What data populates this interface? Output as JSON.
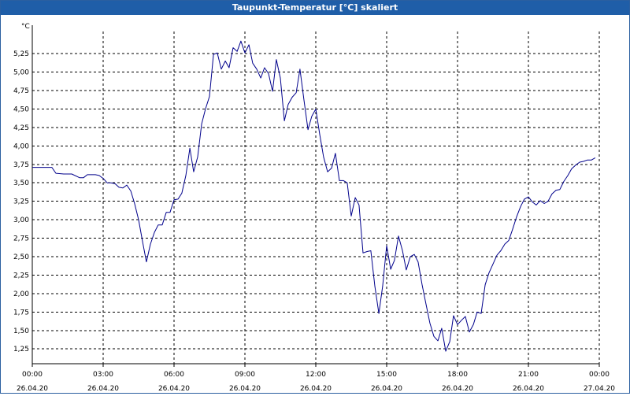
{
  "window": {
    "title": "Taupunkt-Temperatur [°C] skaliert"
  },
  "colors": {
    "titlebar": "#1f5ea8",
    "series": "#00008b",
    "grid": "#000000"
  },
  "chart_data": {
    "type": "line",
    "title": "Taupunkt-Temperatur [°C] skaliert",
    "ylabel": "°C",
    "xlabel": "",
    "grid": true,
    "legend": "none",
    "xlim_hours": [
      0,
      24
    ],
    "ylim": [
      1.05,
      5.55
    ],
    "yticks": [
      1.25,
      1.5,
      1.75,
      2.0,
      2.25,
      2.5,
      2.75,
      3.0,
      3.25,
      3.5,
      3.75,
      4.0,
      4.25,
      4.5,
      4.75,
      5.0,
      5.25
    ],
    "ytick_labels": [
      "1,25",
      "1,50",
      "1,75",
      "2,00",
      "2,25",
      "2,50",
      "2,75",
      "3,00",
      "3,25",
      "3,50",
      "3,75",
      "4,00",
      "4,25",
      "4,50",
      "4,75",
      "5,00",
      "5,25"
    ],
    "xticks": [
      {
        "hour": 0,
        "time": "00:00",
        "date": "26.04.20"
      },
      {
        "hour": 3,
        "time": "03:00",
        "date": "26.04.20"
      },
      {
        "hour": 6,
        "time": "06:00",
        "date": "26.04.20"
      },
      {
        "hour": 9,
        "time": "09:00",
        "date": "26.04.20"
      },
      {
        "hour": 12,
        "time": "12:00",
        "date": "26.04.20"
      },
      {
        "hour": 15,
        "time": "15:00",
        "date": "26.04.20"
      },
      {
        "hour": 18,
        "time": "18:00",
        "date": "26.04.20"
      },
      {
        "hour": 21,
        "time": "21:00",
        "date": "26.04.20"
      },
      {
        "hour": 24,
        "time": "00:00",
        "date": "27.04.20"
      }
    ],
    "series": [
      {
        "color": "#00008b",
        "points": [
          [
            0.0,
            3.71
          ],
          [
            0.5,
            3.71
          ],
          [
            0.83,
            3.71
          ],
          [
            1.0,
            3.63
          ],
          [
            1.33,
            3.62
          ],
          [
            1.67,
            3.62
          ],
          [
            2.0,
            3.57
          ],
          [
            2.17,
            3.57
          ],
          [
            2.33,
            3.61
          ],
          [
            2.67,
            3.61
          ],
          [
            2.83,
            3.6
          ],
          [
            3.0,
            3.56
          ],
          [
            3.17,
            3.5
          ],
          [
            3.33,
            3.5
          ],
          [
            3.5,
            3.49
          ],
          [
            3.67,
            3.44
          ],
          [
            3.83,
            3.43
          ],
          [
            4.0,
            3.47
          ],
          [
            4.17,
            3.39
          ],
          [
            4.33,
            3.22
          ],
          [
            4.5,
            3.0
          ],
          [
            4.67,
            2.7
          ],
          [
            4.83,
            2.43
          ],
          [
            5.0,
            2.67
          ],
          [
            5.17,
            2.83
          ],
          [
            5.33,
            2.93
          ],
          [
            5.5,
            2.93
          ],
          [
            5.67,
            3.1
          ],
          [
            5.83,
            3.1
          ],
          [
            6.0,
            3.27
          ],
          [
            6.17,
            3.28
          ],
          [
            6.33,
            3.36
          ],
          [
            6.5,
            3.6
          ],
          [
            6.67,
            3.97
          ],
          [
            6.83,
            3.65
          ],
          [
            7.0,
            3.85
          ],
          [
            7.17,
            4.3
          ],
          [
            7.33,
            4.5
          ],
          [
            7.5,
            4.67
          ],
          [
            7.67,
            5.24
          ],
          [
            7.83,
            5.26
          ],
          [
            8.0,
            5.04
          ],
          [
            8.17,
            5.15
          ],
          [
            8.33,
            5.06
          ],
          [
            8.5,
            5.33
          ],
          [
            8.67,
            5.28
          ],
          [
            8.83,
            5.42
          ],
          [
            9.0,
            5.26
          ],
          [
            9.17,
            5.37
          ],
          [
            9.33,
            5.12
          ],
          [
            9.5,
            5.04
          ],
          [
            9.67,
            4.92
          ],
          [
            9.83,
            5.06
          ],
          [
            10.0,
            4.98
          ],
          [
            10.17,
            4.74
          ],
          [
            10.33,
            5.17
          ],
          [
            10.5,
            4.92
          ],
          [
            10.67,
            4.34
          ],
          [
            10.83,
            4.56
          ],
          [
            11.0,
            4.66
          ],
          [
            11.17,
            4.72
          ],
          [
            11.33,
            5.04
          ],
          [
            11.5,
            4.62
          ],
          [
            11.67,
            4.22
          ],
          [
            11.83,
            4.4
          ],
          [
            12.0,
            4.5
          ],
          [
            12.17,
            4.15
          ],
          [
            12.33,
            3.85
          ],
          [
            12.5,
            3.65
          ],
          [
            12.67,
            3.7
          ],
          [
            12.83,
            3.9
          ],
          [
            13.0,
            3.53
          ],
          [
            13.17,
            3.53
          ],
          [
            13.33,
            3.5
          ],
          [
            13.5,
            3.05
          ],
          [
            13.67,
            3.3
          ],
          [
            13.83,
            3.2
          ],
          [
            14.0,
            2.55
          ],
          [
            14.17,
            2.57
          ],
          [
            14.33,
            2.58
          ],
          [
            14.5,
            2.1
          ],
          [
            14.67,
            1.73
          ],
          [
            14.83,
            2.1
          ],
          [
            15.0,
            2.65
          ],
          [
            15.17,
            2.33
          ],
          [
            15.33,
            2.45
          ],
          [
            15.5,
            2.78
          ],
          [
            15.67,
            2.58
          ],
          [
            15.83,
            2.32
          ],
          [
            16.0,
            2.5
          ],
          [
            16.17,
            2.53
          ],
          [
            16.33,
            2.43
          ],
          [
            16.5,
            2.12
          ],
          [
            16.67,
            1.85
          ],
          [
            16.83,
            1.6
          ],
          [
            17.0,
            1.42
          ],
          [
            17.17,
            1.36
          ],
          [
            17.33,
            1.53
          ],
          [
            17.5,
            1.22
          ],
          [
            17.67,
            1.35
          ],
          [
            17.83,
            1.7
          ],
          [
            18.0,
            1.58
          ],
          [
            18.17,
            1.64
          ],
          [
            18.33,
            1.69
          ],
          [
            18.5,
            1.48
          ],
          [
            18.67,
            1.58
          ],
          [
            18.83,
            1.75
          ],
          [
            19.0,
            1.73
          ],
          [
            19.17,
            2.12
          ],
          [
            19.33,
            2.28
          ],
          [
            19.5,
            2.4
          ],
          [
            19.67,
            2.52
          ],
          [
            19.83,
            2.58
          ],
          [
            20.0,
            2.67
          ],
          [
            20.17,
            2.72
          ],
          [
            20.33,
            2.87
          ],
          [
            20.5,
            3.04
          ],
          [
            20.67,
            3.18
          ],
          [
            20.83,
            3.28
          ],
          [
            21.0,
            3.31
          ],
          [
            21.17,
            3.24
          ],
          [
            21.33,
            3.2
          ],
          [
            21.5,
            3.26
          ],
          [
            21.67,
            3.22
          ],
          [
            21.83,
            3.25
          ],
          [
            22.0,
            3.35
          ],
          [
            22.17,
            3.4
          ],
          [
            22.33,
            3.41
          ],
          [
            22.5,
            3.52
          ],
          [
            22.67,
            3.6
          ],
          [
            22.83,
            3.69
          ],
          [
            23.0,
            3.74
          ],
          [
            23.17,
            3.78
          ],
          [
            23.33,
            3.79
          ],
          [
            23.5,
            3.81
          ],
          [
            23.67,
            3.81
          ],
          [
            23.83,
            3.84
          ]
        ]
      }
    ]
  }
}
